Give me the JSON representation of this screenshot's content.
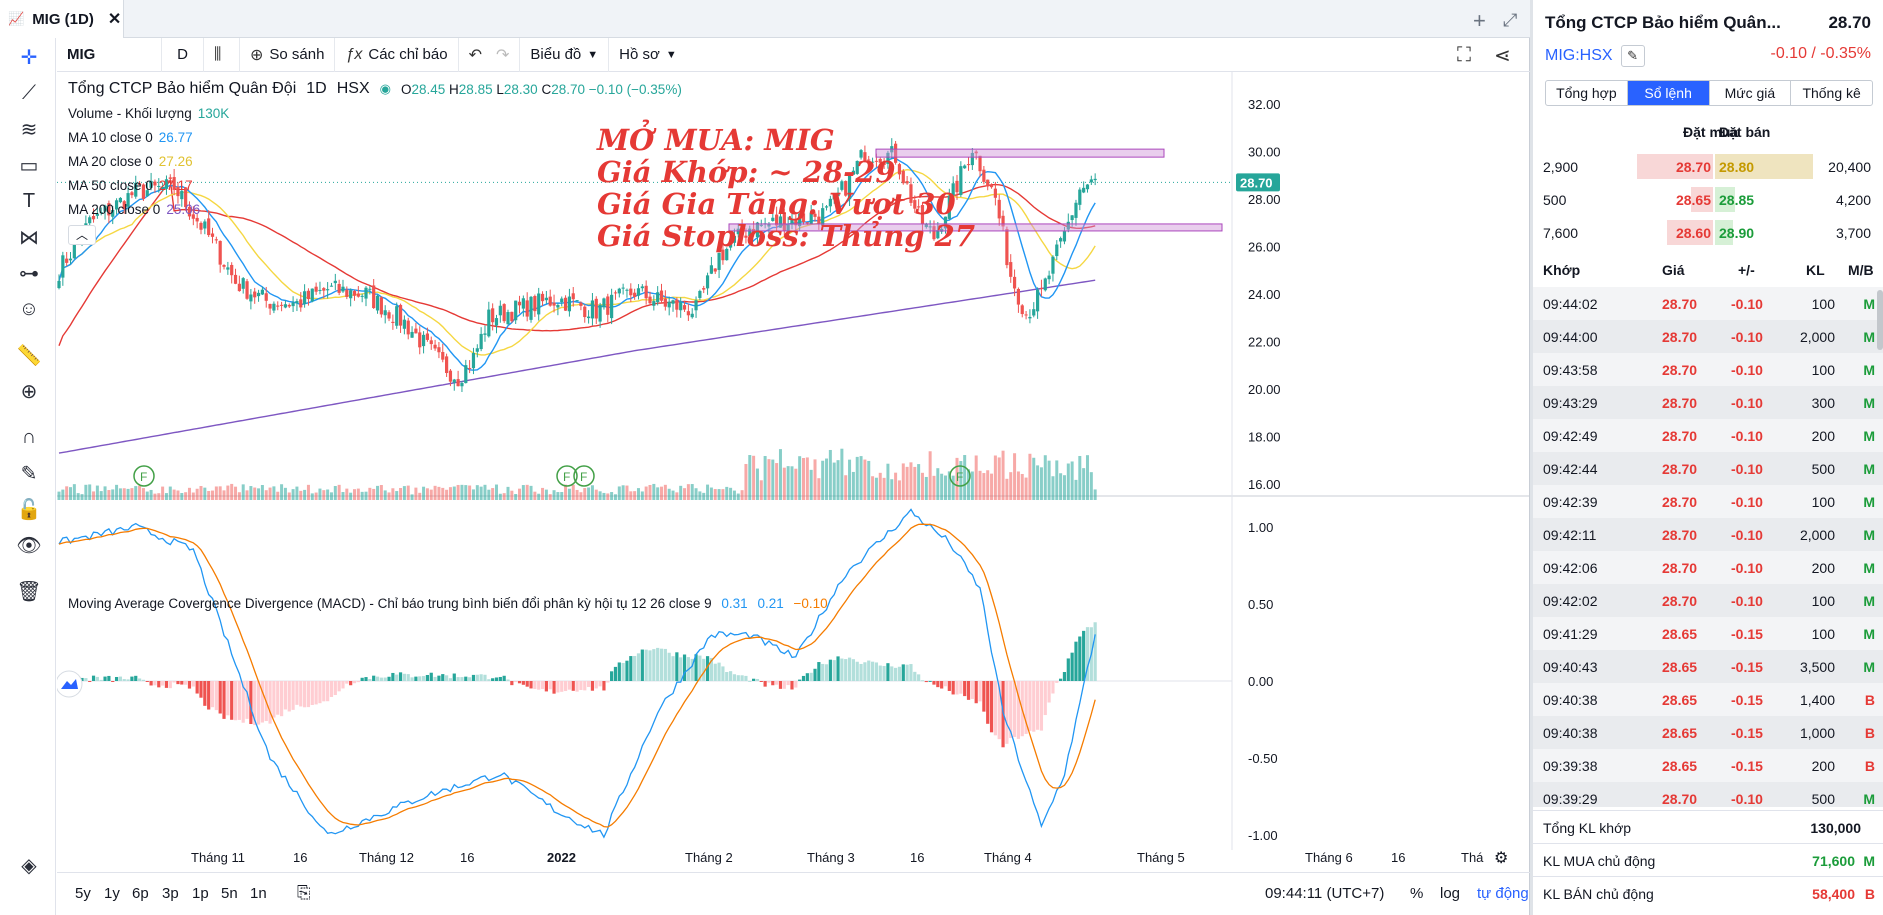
{
  "tab": {
    "title": "MIG (1D)"
  },
  "toolbar": {
    "symbol": "MIG",
    "interval": "D",
    "compare": "So sánh",
    "indicators": "Các chỉ báo",
    "chart_menu": "Biểu đồ",
    "profile_menu": "Hồ sơ"
  },
  "legend": {
    "name": "Tổng CTCP Bảo hiểm Quân Đội",
    "tf": "1D",
    "exchange": "HSX",
    "o_label": "O",
    "o": "28.45",
    "h_label": "H",
    "h": "28.85",
    "l_label": "L",
    "l": "28.30",
    "c_label": "C",
    "c": "28.70",
    "chg": "−0.10 (−0.35%)",
    "volume": {
      "label": "Volume - Khối lượng",
      "value": "130K"
    },
    "ma": [
      {
        "label": "MA 10 close 0",
        "value": "26.77",
        "color": "#2196f3"
      },
      {
        "label": "MA 20 close 0",
        "value": "27.26",
        "color": "#f5d742"
      },
      {
        "label": "MA 50 close 0",
        "value": "27.17",
        "color": "#e53935"
      },
      {
        "label": "MA 200 close 0",
        "value": "25.06",
        "color": "#7e57c2"
      }
    ]
  },
  "annotation": {
    "line1": "MỞ MUA: MIG",
    "line2": "Giá Khớp: ~ 28-29",
    "line3": "Giá Gia Tăng: Vượt 30",
    "line4": "Giá Stoploss: Thủng 27"
  },
  "macd": {
    "label": "Moving Average Covergence Divergence (MACD) - Chỉ báo trung bình biến đổi phân kỳ hội tụ 12 26 close 9",
    "v1": "0.31",
    "v2": "0.21",
    "v3": "−0.10"
  },
  "price_axis": [
    "32.00",
    "30.00",
    "28.00",
    "26.00",
    "24.00",
    "22.00",
    "20.00",
    "18.00",
    "16.00"
  ],
  "price_tag": "28.70",
  "macd_axis": [
    "1.00",
    "0.50",
    "0.00",
    "-0.50",
    "-1.00"
  ],
  "time_axis": [
    "Tháng 11",
    "16",
    "Tháng 12",
    "16",
    "2022",
    "Tháng 2",
    "Tháng 3",
    "16",
    "Tháng 4",
    "Tháng 5",
    "Tháng 6",
    "16",
    "Thá"
  ],
  "event_marker": "F",
  "bottom": {
    "ranges": [
      "5y",
      "1y",
      "6p",
      "3p",
      "1p",
      "5n",
      "1n"
    ],
    "time": "09:44:11 (UTC+7)",
    "pct": "%",
    "log": "log",
    "auto": "tự động"
  },
  "panel": {
    "name": "Tổng CTCP Bảo hiểm Quân...",
    "price": "28.70",
    "symbol": "MIG:HSX",
    "change": "-0.10 / -0.35%",
    "tabs": [
      "Tổng hợp",
      "Sổ lệnh",
      "Mức giá",
      "Thống kê"
    ],
    "ob_head": {
      "buy": "Đặt mua",
      "sell": "Đặt bán"
    },
    "orderbook": [
      {
        "bq": "2,900",
        "bp": "28.70",
        "sp": "28.80",
        "sq": "20,400"
      },
      {
        "bq": "500",
        "bp": "28.65",
        "sp": "28.85",
        "sq": "4,200"
      },
      {
        "bq": "7,600",
        "bp": "28.60",
        "sp": "28.90",
        "sq": "3,700"
      }
    ],
    "trades_head": {
      "t": "Khớp",
      "p": "Giá",
      "c": "+/-",
      "v": "KL",
      "s": "M/B"
    },
    "trades": [
      {
        "t": "09:44:02",
        "p": "28.70",
        "c": "-0.10",
        "v": "100",
        "s": "M"
      },
      {
        "t": "09:44:00",
        "p": "28.70",
        "c": "-0.10",
        "v": "2,000",
        "s": "M"
      },
      {
        "t": "09:43:58",
        "p": "28.70",
        "c": "-0.10",
        "v": "100",
        "s": "M"
      },
      {
        "t": "09:43:29",
        "p": "28.70",
        "c": "-0.10",
        "v": "300",
        "s": "M"
      },
      {
        "t": "09:42:49",
        "p": "28.70",
        "c": "-0.10",
        "v": "200",
        "s": "M"
      },
      {
        "t": "09:42:44",
        "p": "28.70",
        "c": "-0.10",
        "v": "500",
        "s": "M"
      },
      {
        "t": "09:42:39",
        "p": "28.70",
        "c": "-0.10",
        "v": "100",
        "s": "M"
      },
      {
        "t": "09:42:11",
        "p": "28.70",
        "c": "-0.10",
        "v": "2,000",
        "s": "M"
      },
      {
        "t": "09:42:06",
        "p": "28.70",
        "c": "-0.10",
        "v": "200",
        "s": "M"
      },
      {
        "t": "09:42:02",
        "p": "28.70",
        "c": "-0.10",
        "v": "100",
        "s": "M"
      },
      {
        "t": "09:41:29",
        "p": "28.65",
        "c": "-0.15",
        "v": "100",
        "s": "M"
      },
      {
        "t": "09:40:43",
        "p": "28.65",
        "c": "-0.15",
        "v": "3,500",
        "s": "M"
      },
      {
        "t": "09:40:38",
        "p": "28.65",
        "c": "-0.15",
        "v": "1,400",
        "s": "B"
      },
      {
        "t": "09:40:38",
        "p": "28.65",
        "c": "-0.15",
        "v": "1,000",
        "s": "B"
      },
      {
        "t": "09:39:38",
        "p": "28.65",
        "c": "-0.15",
        "v": "200",
        "s": "B"
      },
      {
        "t": "09:39:29",
        "p": "28.70",
        "c": "-0.10",
        "v": "500",
        "s": "M"
      }
    ],
    "sum_total": {
      "label": "Tổng KL khớp",
      "value": "130,000"
    },
    "sum_buy": {
      "label": "KL MUA chủ động",
      "value": "71,600",
      "s": "M"
    },
    "sum_sell": {
      "label": "KL BÁN chủ động",
      "value": "58,400",
      "s": "B"
    }
  },
  "colors": {
    "up": "#26a69a",
    "down": "#ef5350",
    "accent": "#2962ff",
    "annotation": "#e53935",
    "zone": "#ce93d8"
  }
}
